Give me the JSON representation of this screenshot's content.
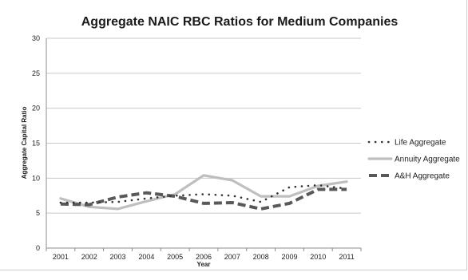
{
  "chart_data": {
    "type": "line",
    "title": "Aggregate NAIC RBC Ratios for Medium Companies",
    "xlabel": "Year",
    "ylabel": "Aggregate Capital Ratio",
    "ylim": [
      0,
      30
    ],
    "yticks": [
      0,
      5,
      10,
      15,
      20,
      25,
      30
    ],
    "grid": true,
    "legend_position": "right",
    "categories": [
      "2001",
      "2002",
      "2003",
      "2004",
      "2005",
      "2006",
      "2007",
      "2008",
      "2009",
      "2010",
      "2011"
    ],
    "series": [
      {
        "name": "Life Aggregate",
        "style": "dotted",
        "color": "#333333",
        "values": [
          6.5,
          6.5,
          6.6,
          7.1,
          7.5,
          7.7,
          7.5,
          6.6,
          8.7,
          9.0,
          8.5
        ]
      },
      {
        "name": "Annuity Aggregate",
        "style": "solid",
        "color": "#bfbfbf",
        "values": [
          7.1,
          5.9,
          5.6,
          6.7,
          7.7,
          10.4,
          9.7,
          7.4,
          7.4,
          8.9,
          9.5
        ]
      },
      {
        "name": "A&H Aggregate",
        "style": "dashed",
        "color": "#595959",
        "values": [
          6.3,
          6.2,
          7.3,
          7.9,
          7.4,
          6.4,
          6.5,
          5.6,
          6.4,
          8.4,
          8.4
        ]
      }
    ]
  }
}
